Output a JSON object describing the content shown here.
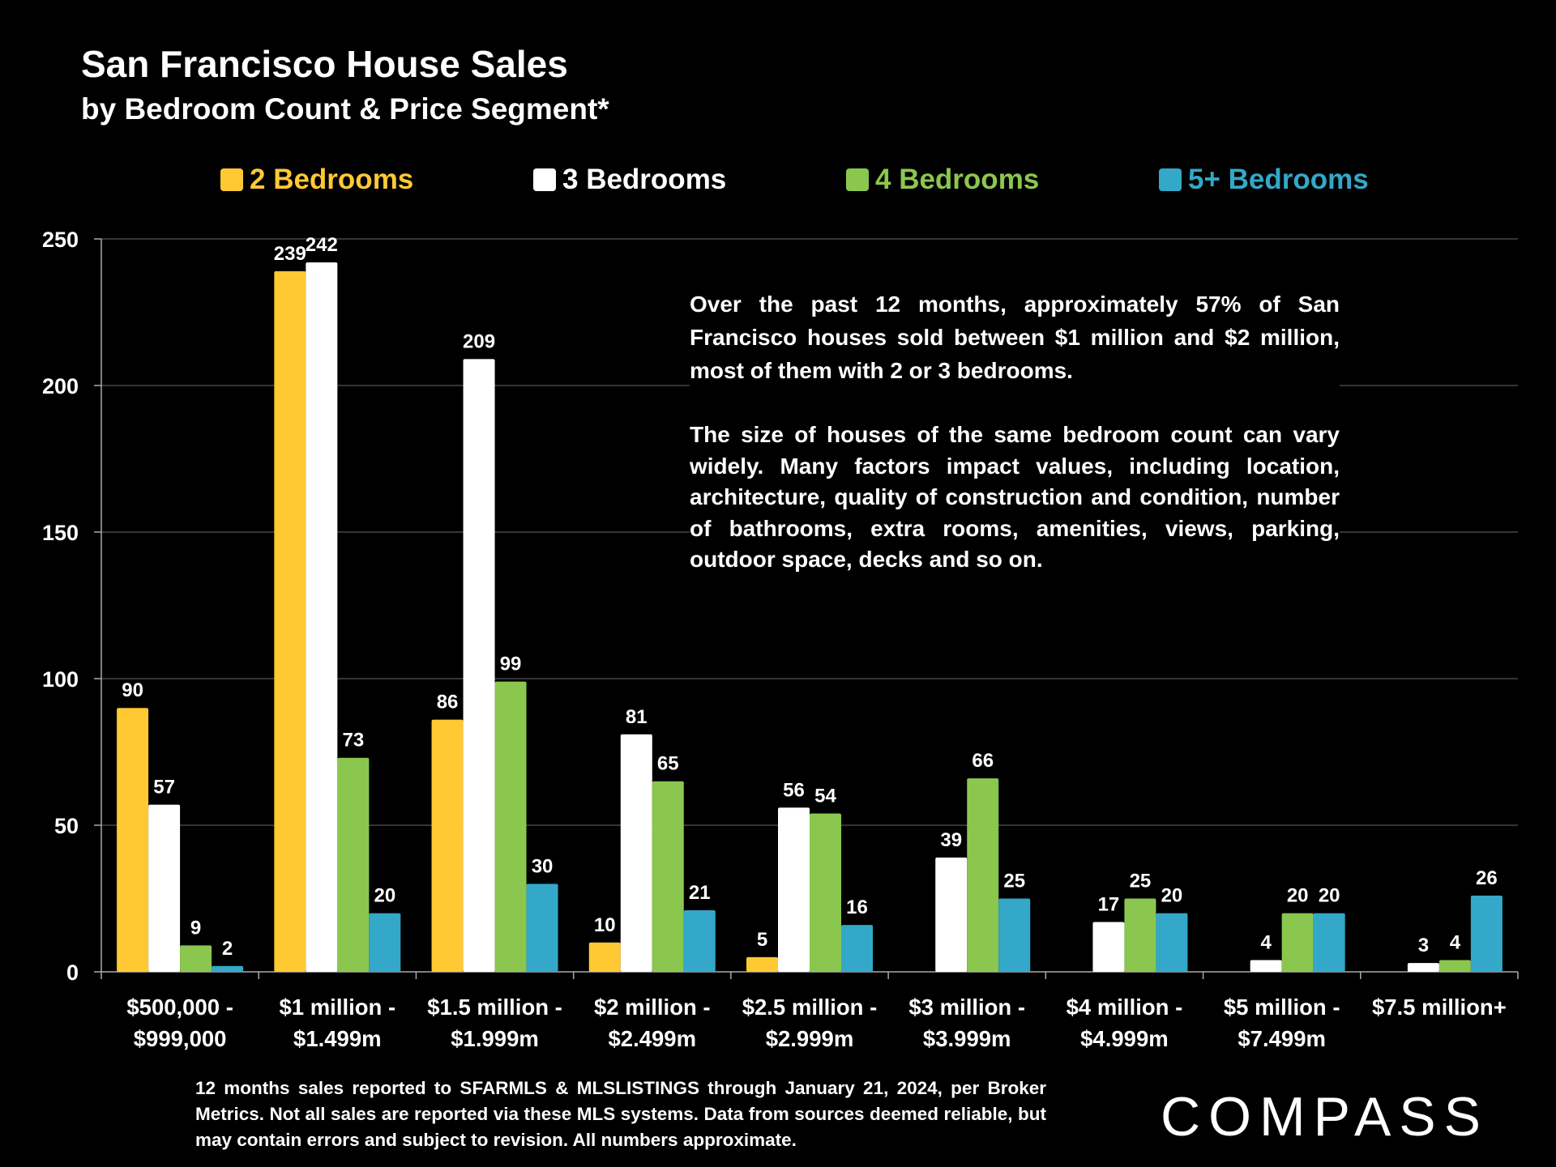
{
  "header": {
    "title": "San Francisco House Sales",
    "subtitle": "by Bedroom Count & Price Segment*"
  },
  "legend": {
    "items": [
      {
        "label": "2 Bedrooms",
        "color": "#FFC934"
      },
      {
        "label": "3 Bedrooms",
        "color": "#FFFFFF"
      },
      {
        "label": "4 Bedrooms",
        "color": "#8BC74F"
      },
      {
        "label": "5+ Bedrooms",
        "color": "#33A8C8"
      }
    ]
  },
  "annotation": {
    "paragraph1": "Over the past 12 months, approximately 57% of San Francisco houses sold between $1 million and $2 million, most of them with 2 or 3 bedrooms.",
    "paragraph2": "The size of houses of the same bedroom count can vary widely. Many factors impact values, including  location, architecture, quality of construction and condition, number of bathrooms, extra rooms, amenities, views, parking, outdoor space, decks and so on."
  },
  "footnote": "12 months sales reported to SFARMLS & MLSLISTINGS through January 21, 2024, per Broker Metrics. Not all sales are reported via these MLS systems. Data from sources deemed reliable, but may contain errors and subject to revision. All numbers approximate.",
  "logo": {
    "text": "COMPASS"
  },
  "chart_data": {
    "type": "bar",
    "title": "San Francisco House Sales",
    "subtitle": "by Bedroom Count & Price Segment*",
    "xlabel": "",
    "ylabel": "",
    "ylim": [
      0,
      250
    ],
    "yticks": [
      "0",
      "50",
      "100",
      "150",
      "200",
      "250"
    ],
    "grid": true,
    "legend_position": "top",
    "categories": [
      [
        "$500,000 -",
        "$999,000"
      ],
      [
        "$1 million -",
        "$1.499m"
      ],
      [
        "$1.5 million -",
        "$1.999m"
      ],
      [
        "$2 million -",
        "$2.499m"
      ],
      [
        "$2.5 million -",
        "$2.999m"
      ],
      [
        "$3 million -",
        "$3.999m"
      ],
      [
        "$4 million -",
        "$4.999m"
      ],
      [
        "$5 million -",
        "$7.499m"
      ],
      [
        "$7.5 million+"
      ]
    ],
    "series": [
      {
        "name": "2 Bedrooms",
        "color": "#FFC934",
        "values": [
          90,
          239,
          86,
          10,
          5,
          null,
          null,
          null,
          null
        ]
      },
      {
        "name": "3 Bedrooms",
        "color": "#FFFFFF",
        "values": [
          57,
          242,
          209,
          81,
          56,
          39,
          17,
          4,
          3
        ]
      },
      {
        "name": "4 Bedrooms",
        "color": "#8BC74F",
        "values": [
          9,
          73,
          99,
          65,
          54,
          66,
          25,
          20,
          4
        ]
      },
      {
        "name": "5+ Bedrooms",
        "color": "#33A8C8",
        "values": [
          2,
          20,
          30,
          21,
          16,
          25,
          20,
          20,
          26
        ]
      }
    ]
  }
}
